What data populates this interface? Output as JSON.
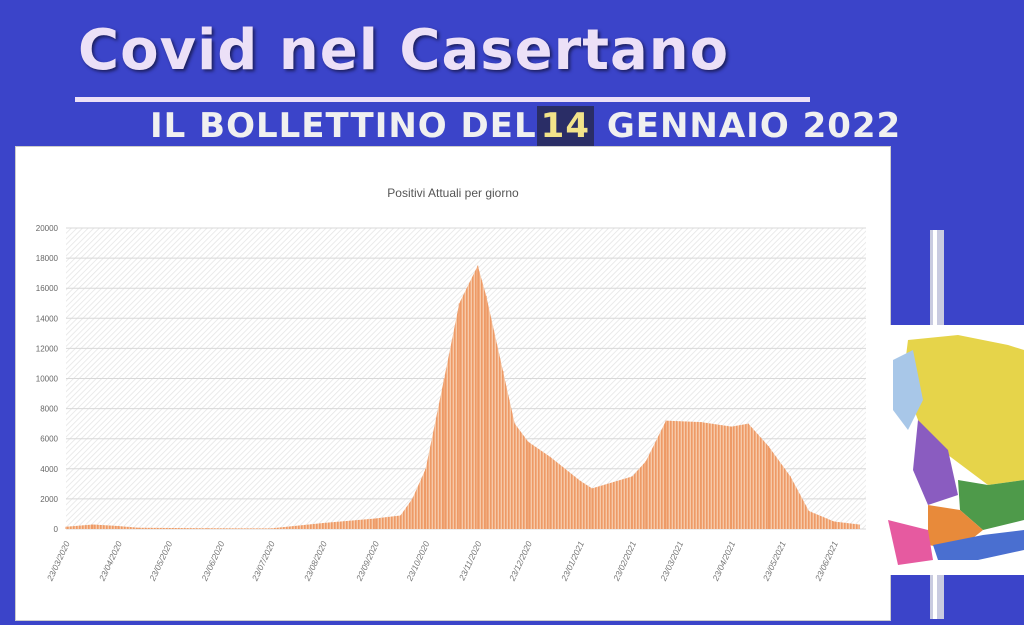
{
  "header": {
    "title": "Covid nel Casertano",
    "subtitle_prefix": "IL BOLLETTINO DEL",
    "subtitle_day": "14",
    "subtitle_suffix": "GENNAIO 2022"
  },
  "colors": {
    "background": "#3b44c9",
    "series": "#f0a070",
    "title_text": "#ece0f7"
  },
  "chart_data": {
    "type": "area",
    "title": "Positivi Attuali per giorno",
    "xlabel": "",
    "ylabel": "",
    "ylim": [
      0,
      20000
    ],
    "yticks": [
      0,
      2000,
      4000,
      6000,
      8000,
      10000,
      12000,
      14000,
      16000,
      18000,
      20000
    ],
    "xticks": [
      "23/03/2020",
      "23/04/2020",
      "23/05/2020",
      "23/06/2020",
      "23/07/2020",
      "23/08/2020",
      "23/09/2020",
      "23/10/2020",
      "23/11/2020",
      "23/12/2020",
      "23/01/2021",
      "23/02/2021",
      "23/03/2021",
      "23/04/2021",
      "23/05/2021",
      "23/06/2021"
    ],
    "grid": true,
    "points": [
      [
        "2020-03-23",
        150
      ],
      [
        "2020-04-08",
        300
      ],
      [
        "2020-04-23",
        200
      ],
      [
        "2020-05-05",
        80
      ],
      [
        "2020-06-15",
        50
      ],
      [
        "2020-07-23",
        40
      ],
      [
        "2020-08-23",
        400
      ],
      [
        "2020-09-23",
        700
      ],
      [
        "2020-10-08",
        900
      ],
      [
        "2020-10-15",
        2000
      ],
      [
        "2020-10-23",
        4000
      ],
      [
        "2020-11-03",
        10000
      ],
      [
        "2020-11-12",
        15000
      ],
      [
        "2020-11-23",
        17500
      ],
      [
        "2020-11-28",
        15500
      ],
      [
        "2020-12-08",
        10500
      ],
      [
        "2020-12-15",
        7000
      ],
      [
        "2020-12-23",
        5800
      ],
      [
        "2021-01-05",
        4800
      ],
      [
        "2021-01-23",
        3200
      ],
      [
        "2021-01-30",
        2700
      ],
      [
        "2021-02-23",
        3500
      ],
      [
        "2021-03-03",
        4500
      ],
      [
        "2021-03-15",
        7200
      ],
      [
        "2021-04-05",
        7100
      ],
      [
        "2021-04-23",
        6800
      ],
      [
        "2021-05-03",
        7000
      ],
      [
        "2021-05-15",
        5500
      ],
      [
        "2021-05-28",
        3500
      ],
      [
        "2021-06-08",
        1200
      ],
      [
        "2021-06-23",
        500
      ],
      [
        "2021-07-08",
        300
      ]
    ]
  }
}
